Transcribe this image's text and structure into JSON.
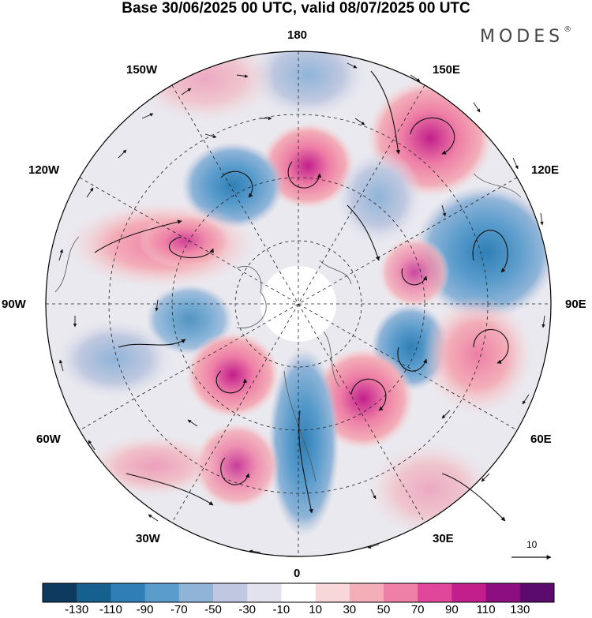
{
  "title": "Base 30/06/2025 00 UTC, valid 08/07/2025 00 UTC",
  "brand": {
    "name": "MODES",
    "mark": "®"
  },
  "longitude_labels": {
    "lon_180": "180",
    "lon_150W": "150W",
    "lon_150E": "150E",
    "lon_120W": "120W",
    "lon_120E": "120E",
    "lon_90W": "90W",
    "lon_90E": "90E",
    "lon_60W": "60W",
    "lon_60E": "60E",
    "lon_30W": "30W",
    "lon_30E": "30E",
    "lon_0": "0"
  },
  "reference_vector": {
    "label": "10"
  },
  "colorbar": {
    "labels": [
      "-130",
      "-110",
      "-90",
      "-70",
      "-50",
      "-30",
      "-10",
      "10",
      "30",
      "50",
      "70",
      "90",
      "110",
      "130"
    ],
    "colors": [
      "#0d3a5e",
      "#16608f",
      "#2f7fb6",
      "#5a9ccc",
      "#8fb4d8",
      "#bfc8e0",
      "#e2e2ee",
      "#ffffff",
      "#f8d7d8",
      "#f3aeb8",
      "#ee7fa6",
      "#e0479a",
      "#c21f8c",
      "#8c0e80",
      "#5b0a6e"
    ]
  },
  "map": {
    "land_color": "#ffffff",
    "anomaly_centers": [
      {
        "sign": "positive",
        "level": 70
      },
      {
        "sign": "negative",
        "level": -50
      },
      {
        "sign": "positive",
        "level": 50
      },
      {
        "sign": "negative",
        "level": -70
      },
      {
        "sign": "positive",
        "level": 90
      },
      {
        "sign": "negative",
        "level": -90
      }
    ]
  }
}
